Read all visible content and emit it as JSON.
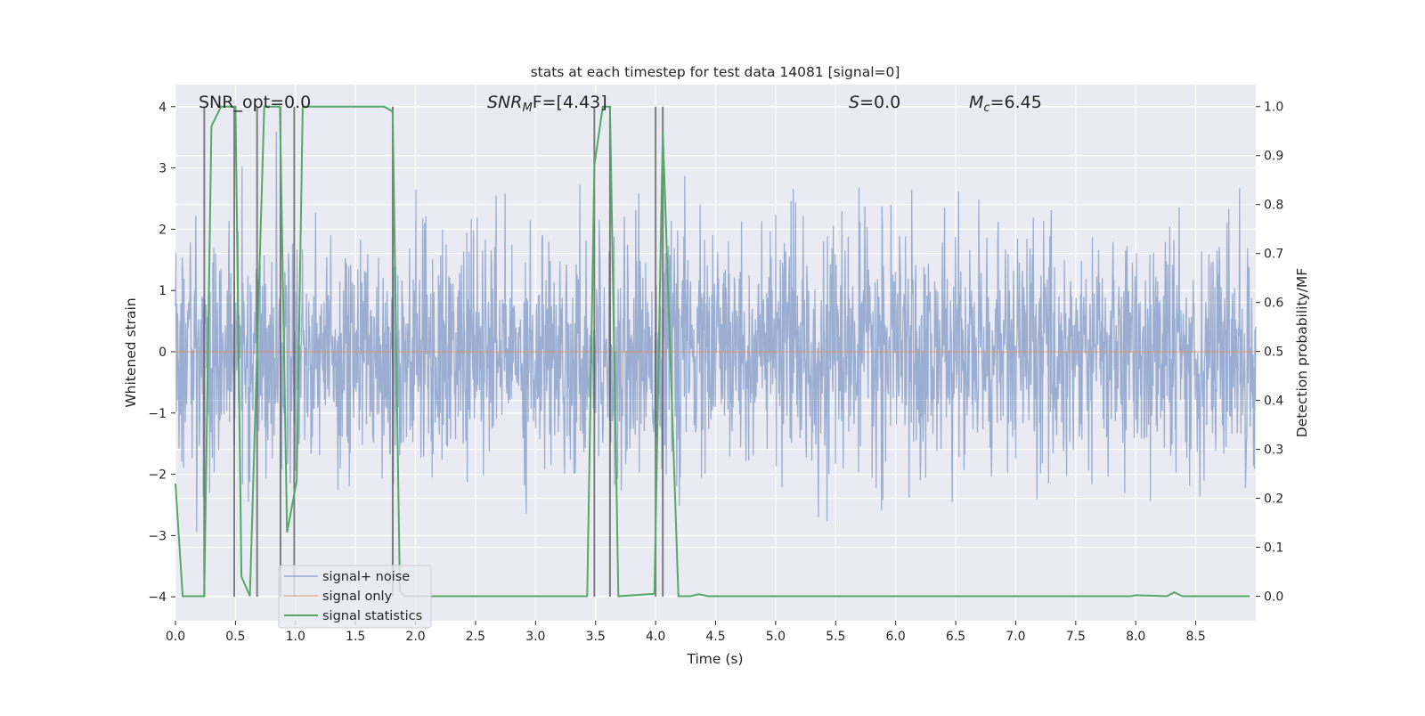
{
  "chart_data": {
    "type": "line",
    "title": "stats at each timestep for test data 14081 [signal=0]",
    "xlabel": "Time (s)",
    "ylabel": "Whitened strain",
    "ylabel_right": "Detection probability/MF",
    "xlim": [
      0,
      9.0
    ],
    "ylim": [
      -4.39,
      4.36
    ],
    "ylim_right": [
      -0.05,
      1.045
    ],
    "xticks": [
      "0.0",
      "0.5",
      "1.0",
      "1.5",
      "2.0",
      "2.5",
      "3.0",
      "3.5",
      "4.0",
      "4.5",
      "5.0",
      "5.5",
      "6.0",
      "6.5",
      "7.0",
      "7.5",
      "8.0",
      "8.5"
    ],
    "yticks": [
      "4",
      "3",
      "2",
      "1",
      "0",
      "−1",
      "−2",
      "−3",
      "−4"
    ],
    "yticks_right": [
      "1.0",
      "0.9",
      "0.8",
      "0.7",
      "0.6",
      "0.5",
      "0.4",
      "0.3",
      "0.2",
      "0.1",
      "0.0"
    ],
    "grid": true,
    "legend_position": "lower-left",
    "annotations": {
      "snr_opt": "SNR_opt=0.0",
      "snr_mf_base": "SNR",
      "snr_mf_sub": "M",
      "snr_mf_rest": "F=[4.43]",
      "s_base": "S",
      "s_rest": "=0.0",
      "mc_base": "M",
      "mc_sub": "c",
      "mc_rest": "=6.45"
    },
    "series": [
      {
        "name": "signal+ noise",
        "color": "#4c72b0",
        "kind": "noise",
        "n_samples": 2400,
        "std": 0.95,
        "axis": "left"
      },
      {
        "name": "signal only",
        "color": "#dd8452",
        "x": [
          0,
          9.0
        ],
        "y": [
          0,
          0
        ],
        "axis": "left"
      },
      {
        "name": "signal statistics",
        "color": "#55a868",
        "axis": "right",
        "x": [
          0,
          0.06,
          0.24,
          0.3,
          0.38,
          0.5,
          0.55,
          0.62,
          0.74,
          0.87,
          0.93,
          1.01,
          1.06,
          1.74,
          1.81,
          1.87,
          1.91,
          3.43,
          3.49,
          3.56,
          3.62,
          3.69,
          3.99,
          4.06,
          4.19,
          4.29,
          4.36,
          4.44,
          7.96,
          8.0,
          8.26,
          8.32,
          8.39,
          8.95
        ],
        "y": [
          0.23,
          0,
          0,
          0.96,
          1.0,
          1.0,
          0.04,
          0,
          1.0,
          1.0,
          0.13,
          0.235,
          1.0,
          1.0,
          0.99,
          0.01,
          0,
          0,
          0.88,
          1.0,
          1.0,
          0,
          0.005,
          0.95,
          0,
          0,
          0.004,
          0,
          0,
          0.002,
          0,
          0.008,
          0,
          0
        ]
      }
    ],
    "detection_markers": {
      "color": "#555555",
      "x": [
        0.24,
        0.49,
        0.68,
        0.875,
        0.99,
        1.81,
        3.49,
        3.62,
        4.0,
        4.06
      ],
      "y_range": [
        -4,
        4
      ]
    }
  }
}
